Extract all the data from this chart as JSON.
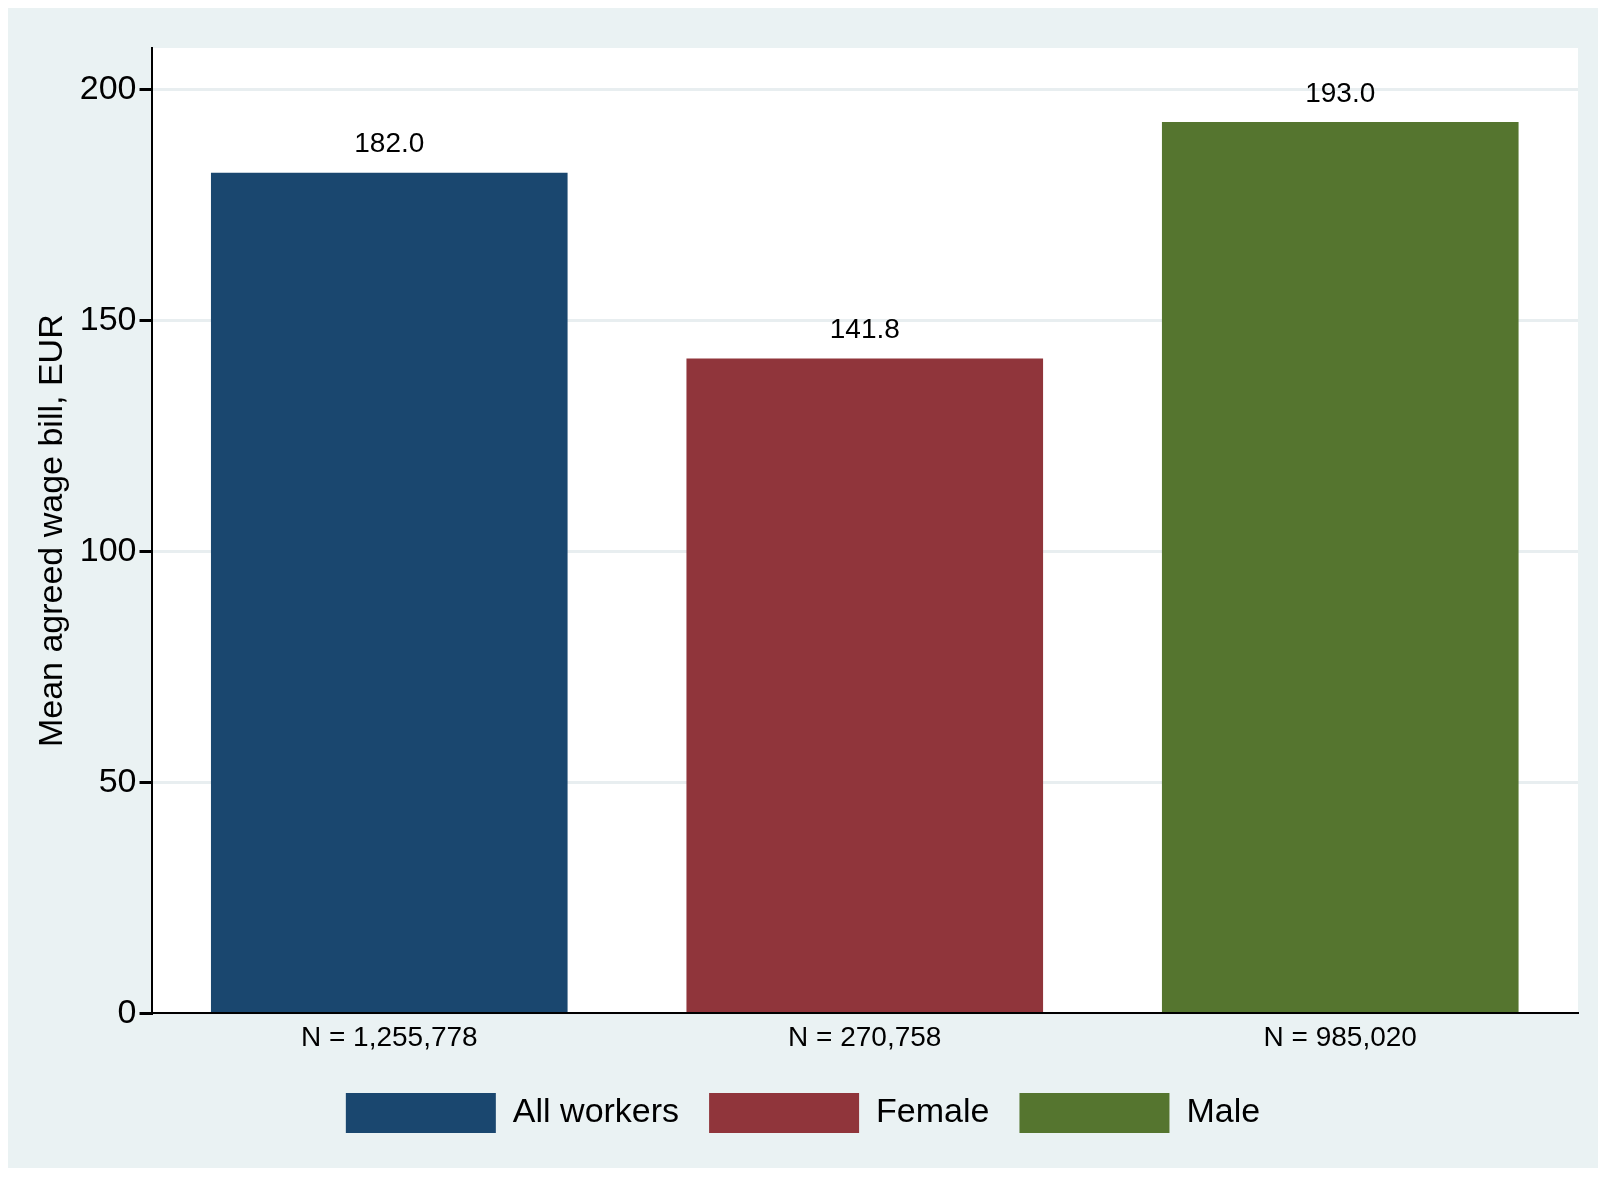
{
  "chart_data": {
    "type": "bar",
    "ylabel": "Mean agreed wage bill, EUR",
    "categories": [
      "N = 1,255,778",
      "N = 270,758",
      "N = 985,020"
    ],
    "series": [
      {
        "name": "All workers",
        "color": "#1a476f",
        "values": [
          182.0,
          null,
          null
        ],
        "value_labels": [
          "182.0",
          null,
          null
        ]
      },
      {
        "name": "Female",
        "color": "#90353b",
        "values": [
          null,
          141.8,
          null
        ],
        "value_labels": [
          null,
          "141.8",
          null
        ]
      },
      {
        "name": "Male",
        "color": "#55752f",
        "values": [
          null,
          null,
          193.0
        ],
        "value_labels": [
          null,
          null,
          "193.0"
        ]
      }
    ],
    "ylim": [
      0,
      209
    ],
    "yticks": [
      0,
      50,
      100,
      150,
      200
    ],
    "grid": "y",
    "legend": "bottom"
  }
}
